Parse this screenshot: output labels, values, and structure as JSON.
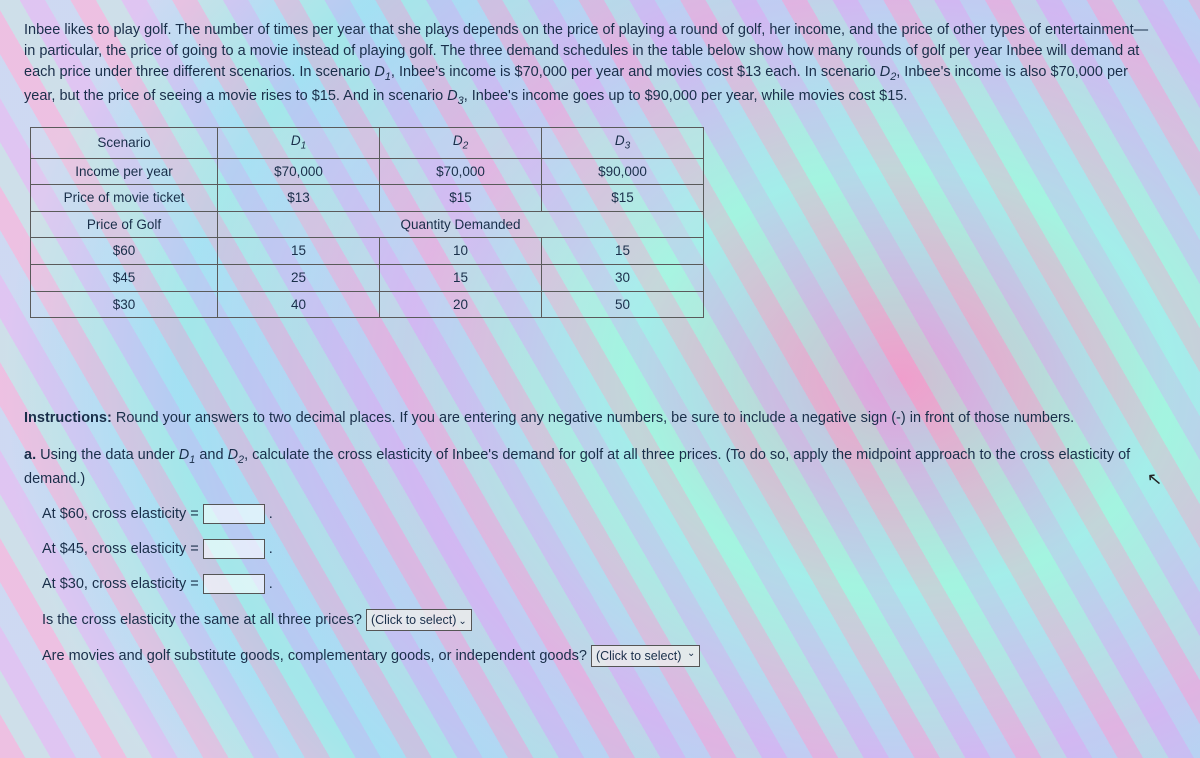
{
  "intro": {
    "line1a": "Inbee likes to play golf. The number of times per year that she plays depends on the price of playing a round of golf, her income, and the price of other types of entertainment—in particular, the price of going to a movie instead of playing golf. The three demand schedules in the table below show how many rounds of golf per year Inbee will demand at each price under three different scenarios. In scenario ",
    "d1": "D",
    "d1s": "1",
    "line1b": ", Inbee's income is $70,000 per year and movies cost $13 each. In scenario ",
    "d2": "D",
    "d2s": "2",
    "line1c": ", Inbee's income is also $70,000 per year, but the price of seeing a movie rises to $15. And in scenario ",
    "d3": "D",
    "d3s": "3",
    "line1d": ", Inbee's income goes up to $90,000 per year, while movies cost $15."
  },
  "table": {
    "headers": {
      "scenario": "Scenario",
      "income": "Income per year",
      "movieprice": "Price of movie ticket",
      "golfprice": "Price of Golf",
      "qdem": "Quantity Demanded"
    },
    "col_d1_a": "D",
    "col_d1_b": "1",
    "col_d2_a": "D",
    "col_d2_b": "2",
    "col_d3_a": "D",
    "col_d3_b": "3",
    "income": {
      "d1": "$70,000",
      "d2": "$70,000",
      "d3": "$90,000"
    },
    "movie": {
      "d1": "$13",
      "d2": "$15",
      "d3": "$15"
    },
    "rows": [
      {
        "price": "$60",
        "d1": "15",
        "d2": "10",
        "d3": "15"
      },
      {
        "price": "$45",
        "d1": "25",
        "d2": "15",
        "d3": "30"
      },
      {
        "price": "$30",
        "d1": "40",
        "d2": "20",
        "d3": "50"
      }
    ]
  },
  "instructions": {
    "label": "Instructions:",
    "text": " Round your answers to two decimal places. If you are entering any negative numbers, be sure to include a negative sign (-) in front of those numbers."
  },
  "parta": {
    "label": "a.",
    "text1": " Using the data under ",
    "d1a": "D",
    "d1b": "1",
    "and": " and ",
    "d2a": "D",
    "d2b": "2",
    "text2": ", calculate the cross elasticity of Inbee's demand for golf at all three prices. (To do so, apply the midpoint approach to the cross elasticity of demand.)",
    "p60": "At $60, cross elasticity = ",
    "p45": "At $45, cross elasticity = ",
    "p30": "At $30, cross elasticity = ",
    "q_same": "Is the cross elasticity the same at all three prices? ",
    "q_goods": "Are movies and golf substitute goods, complementary goods, or independent goods? "
  },
  "select": {
    "placeholder": "(Click to select)"
  },
  "colors": {
    "text": "#1a2f4a",
    "border": "#5a5a5a"
  }
}
